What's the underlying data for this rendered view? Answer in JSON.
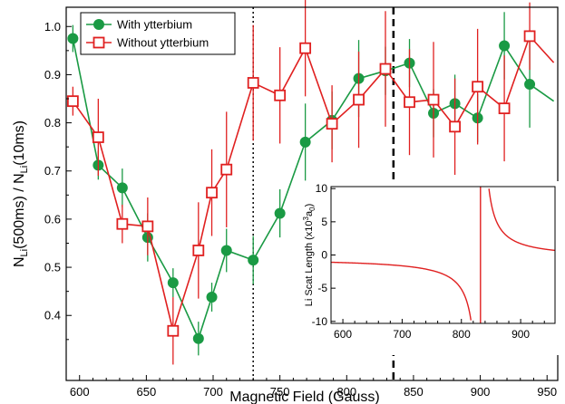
{
  "chart_data": [
    {
      "type": "line",
      "xlabel": "Magnetic Field (Gauss)",
      "ylabel_parts": [
        "N",
        "Li",
        "(500ms) / N",
        "Li",
        "(10ms)"
      ],
      "xlim": [
        590,
        958
      ],
      "ylim": [
        0.265,
        1.04
      ],
      "xticks": [
        600,
        650,
        700,
        750,
        800,
        850,
        900,
        950
      ],
      "yticks": [
        0.4,
        0.5,
        0.6,
        0.7,
        0.8,
        0.9,
        1.0
      ],
      "ytick_labels": [
        "0.4",
        "0.5",
        "0.6",
        "0.7",
        "0.8",
        "0.9",
        "1.0"
      ],
      "legend_position": "top-left",
      "vlines": [
        {
          "x": 730,
          "style": "dotted"
        },
        {
          "x": 835,
          "style": "dashed"
        }
      ],
      "series": [
        {
          "name": "With ytterbium",
          "color": "#1a9a44",
          "marker": "filled-circle",
          "x": [
            595,
            614,
            632,
            651,
            670,
            689,
            699,
            710,
            730,
            750,
            769,
            789,
            809,
            829,
            847,
            865,
            881,
            898,
            918,
            937,
            955
          ],
          "y": [
            0.975,
            0.712,
            0.665,
            0.562,
            0.468,
            0.352,
            0.438,
            0.535,
            0.515,
            0.612,
            0.76,
            0.805,
            0.892,
            0.908,
            0.924,
            0.82,
            0.84,
            0.81,
            0.96,
            0.88,
            0.845
          ],
          "err": [
            0.028,
            0.03,
            0.04,
            0.05,
            0.03,
            0.035,
            0.03,
            0.045,
            0.05,
            0.05,
            0.08,
            0.06,
            0.08,
            0.05,
            0.05,
            0.05,
            0.06,
            0.05,
            0.07,
            0.09,
            0
          ]
        },
        {
          "name": "Without ytterbium",
          "color": "#e02020",
          "marker": "open-square",
          "x": [
            595,
            614,
            632,
            651,
            670,
            689,
            699,
            710,
            730,
            750,
            769,
            789,
            809,
            829,
            847,
            865,
            881,
            898,
            918,
            937,
            955
          ],
          "y": [
            0.845,
            0.77,
            0.59,
            0.585,
            0.368,
            0.535,
            0.655,
            0.703,
            0.883,
            0.857,
            0.955,
            0.798,
            0.848,
            0.912,
            0.843,
            0.848,
            0.792,
            0.875,
            0.83,
            0.98,
            0.925
          ],
          "err": [
            0.03,
            0.08,
            0.04,
            0.06,
            0.07,
            0.1,
            0.09,
            0.12,
            0.12,
            0.1,
            0.1,
            0.08,
            0.1,
            0.12,
            0.11,
            0.12,
            0.1,
            0.12,
            0.11,
            0.07,
            0
          ]
        }
      ]
    },
    {
      "type": "line",
      "ylabel_parts": [
        "Li Scat Length (x10",
        "3",
        "a",
        "0",
        ")"
      ],
      "xlim": [
        580,
        958
      ],
      "ylim": [
        -10.3,
        10.3
      ],
      "xticks": [
        600,
        700,
        800,
        900
      ],
      "yticks": [
        -10,
        -5,
        0,
        5,
        10
      ],
      "ytick_labels": [
        "-10",
        "-5",
        "0",
        "5",
        "10"
      ],
      "resonance_field": 832.2,
      "color": "#e02020"
    }
  ]
}
